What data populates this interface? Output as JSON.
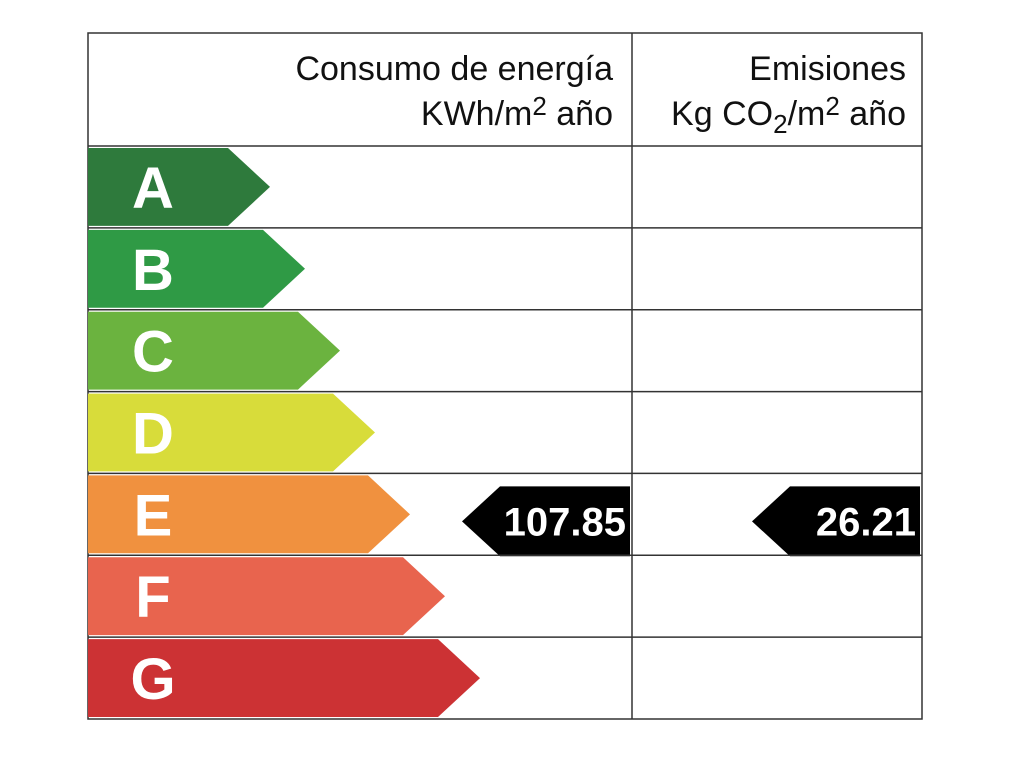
{
  "header": {
    "energy_title": "Consumo de energía",
    "energy_unit": [
      "KWh/m",
      "2",
      " año"
    ],
    "emissions_title": "Emisiones",
    "emissions_unit": [
      "Kg CO",
      "2",
      "/m",
      "2",
      " año"
    ]
  },
  "classes": [
    {
      "letter": "A",
      "color": "#2e7a3c"
    },
    {
      "letter": "B",
      "color": "#2f9a45"
    },
    {
      "letter": "C",
      "color": "#6bb33f"
    },
    {
      "letter": "D",
      "color": "#d8dc3a"
    },
    {
      "letter": "E",
      "color": "#f0913f",
      "energy": 107.85,
      "emissions": 26.21
    },
    {
      "letter": "F",
      "color": "#e8644e"
    },
    {
      "letter": "G",
      "color": "#cc3234"
    }
  ]
}
